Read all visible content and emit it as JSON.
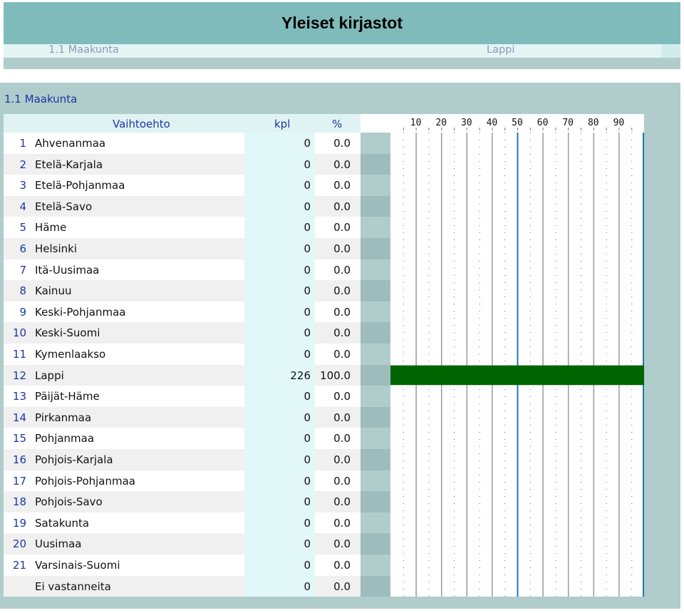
{
  "title": "Yleiset kirjastot",
  "subheader": {
    "left": "1.1 Maakunta",
    "right": "Lappi"
  },
  "section_title": "1.1 Maakunta",
  "headers": {
    "vaihtoehto": "Vaihtoehto",
    "kpl": "kpl",
    "pct": "%"
  },
  "colors": {
    "title_bg": "#80bbbb",
    "bar": "#006400",
    "accent_text": "#1d36a6",
    "gridline": "#1b78b6"
  },
  "chart_data": {
    "type": "bar",
    "orientation": "horizontal",
    "categories": [
      "Ahvenanmaa",
      "Etelä-Karjala",
      "Etelä-Pohjanmaa",
      "Etelä-Savo",
      "Häme",
      "Helsinki",
      "Itä-Uusimaa",
      "Kainuu",
      "Keski-Pohjanmaa",
      "Keski-Suomi",
      "Kymenlaakso",
      "Lappi",
      "Päijät-Häme",
      "Pirkanmaa",
      "Pohjanmaa",
      "Pohjois-Karjala",
      "Pohjois-Pohjanmaa",
      "Pohjois-Savo",
      "Satakunta",
      "Uusimaa",
      "Varsinais-Suomi",
      "Ei vastanneita"
    ],
    "values": [
      0,
      0,
      0,
      0,
      0,
      0,
      0,
      0,
      0,
      0,
      0,
      100,
      0,
      0,
      0,
      0,
      0,
      0,
      0,
      0,
      0,
      0
    ],
    "xlim": [
      0,
      100
    ],
    "x_ticks": [
      10,
      20,
      30,
      40,
      50,
      60,
      70,
      80,
      90
    ],
    "grid": true
  },
  "rows": [
    {
      "num": "1",
      "name": "Ahvenanmaa",
      "kpl": "0",
      "pct": "0.0"
    },
    {
      "num": "2",
      "name": "Etelä-Karjala",
      "kpl": "0",
      "pct": "0.0"
    },
    {
      "num": "3",
      "name": "Etelä-Pohjanmaa",
      "kpl": "0",
      "pct": "0.0"
    },
    {
      "num": "4",
      "name": "Etelä-Savo",
      "kpl": "0",
      "pct": "0.0"
    },
    {
      "num": "5",
      "name": "Häme",
      "kpl": "0",
      "pct": "0.0"
    },
    {
      "num": "6",
      "name": "Helsinki",
      "kpl": "0",
      "pct": "0.0"
    },
    {
      "num": "7",
      "name": "Itä-Uusimaa",
      "kpl": "0",
      "pct": "0.0"
    },
    {
      "num": "8",
      "name": "Kainuu",
      "kpl": "0",
      "pct": "0.0"
    },
    {
      "num": "9",
      "name": "Keski-Pohjanmaa",
      "kpl": "0",
      "pct": "0.0"
    },
    {
      "num": "10",
      "name": "Keski-Suomi",
      "kpl": "0",
      "pct": "0.0"
    },
    {
      "num": "11",
      "name": "Kymenlaakso",
      "kpl": "0",
      "pct": "0.0"
    },
    {
      "num": "12",
      "name": "Lappi",
      "kpl": "226",
      "pct": "100.0"
    },
    {
      "num": "13",
      "name": "Päijät-Häme",
      "kpl": "0",
      "pct": "0.0"
    },
    {
      "num": "14",
      "name": "Pirkanmaa",
      "kpl": "0",
      "pct": "0.0"
    },
    {
      "num": "15",
      "name": "Pohjanmaa",
      "kpl": "0",
      "pct": "0.0"
    },
    {
      "num": "16",
      "name": "Pohjois-Karjala",
      "kpl": "0",
      "pct": "0.0"
    },
    {
      "num": "17",
      "name": "Pohjois-Pohjanmaa",
      "kpl": "0",
      "pct": "0.0"
    },
    {
      "num": "18",
      "name": "Pohjois-Savo",
      "kpl": "0",
      "pct": "0.0"
    },
    {
      "num": "19",
      "name": "Satakunta",
      "kpl": "0",
      "pct": "0.0"
    },
    {
      "num": "20",
      "name": "Uusimaa",
      "kpl": "0",
      "pct": "0.0"
    },
    {
      "num": "21",
      "name": "Varsinais-Suomi",
      "kpl": "0",
      "pct": "0.0"
    },
    {
      "num": "",
      "name": "Ei vastanneita",
      "kpl": "0",
      "pct": "0.0"
    }
  ]
}
